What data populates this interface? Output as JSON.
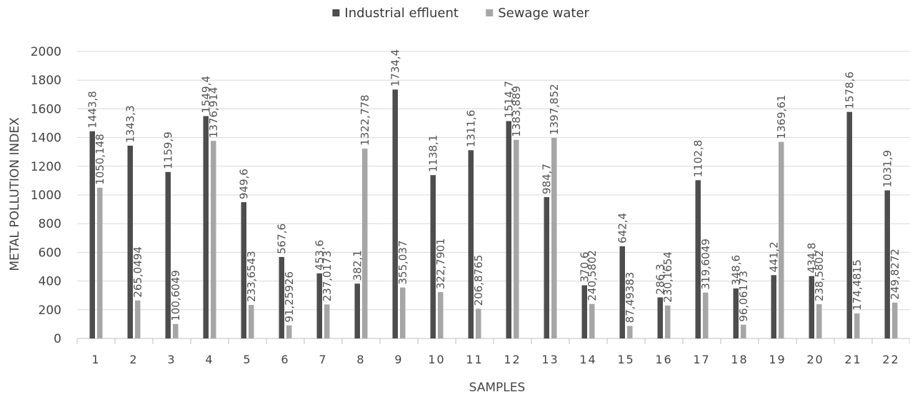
{
  "chart_data": {
    "type": "bar",
    "title": "",
    "xlabel": "SAMPLES",
    "ylabel": "METAL POLLUTION INDEX",
    "ylim": [
      0,
      2000
    ],
    "yticks": [
      0,
      200,
      400,
      600,
      800,
      1000,
      1200,
      1400,
      1600,
      1800,
      2000
    ],
    "grid": true,
    "legend_position": "top-center",
    "categories": [
      "1",
      "2",
      "3",
      "4",
      "5",
      "6",
      "7",
      "8",
      "9",
      "10",
      "11",
      "12",
      "13",
      "14",
      "15",
      "16",
      "17",
      "18",
      "19",
      "20",
      "21",
      "22"
    ],
    "series": [
      {
        "name": "Industrial effluent",
        "color": "#4d4d4d",
        "values": [
          1443.8,
          1343.3,
          1159.9,
          1549.4,
          949.6,
          567.6,
          453.6,
          382.1,
          1734.4,
          1138.1,
          1311.6,
          1514.7,
          984.7,
          370.6,
          642.4,
          286.3,
          1102.8,
          348.6,
          441.2,
          434.8,
          1578.6,
          1031.9
        ],
        "labels": [
          "1443,8",
          "1343,3",
          "1159,9",
          "1549,4",
          "949,6",
          "567,6",
          "453,6",
          "382,1",
          "1734,4",
          "1138,1",
          "1311,6",
          "1514,7",
          "984,7",
          "370,6",
          "642,4",
          "286,3",
          "1102,8",
          "348,6",
          "441,2",
          "434,8",
          "1578,6",
          "1031,9"
        ]
      },
      {
        "name": "Sewage water",
        "color": "#a6a6a6",
        "values": [
          1050.148,
          265.0494,
          100.6049,
          1376.914,
          233.6543,
          91.25926,
          237.0173,
          1322.778,
          355.037,
          322.7901,
          206.8765,
          1383.889,
          1397.852,
          240.5802,
          87.49383,
          230.1654,
          319.6049,
          96.06173,
          1369.61,
          238.5802,
          174.4815,
          249.8272
        ],
        "labels": [
          "1050,148",
          "265,0494",
          "100,6049",
          "1376,914",
          "233,6543",
          "91,25926",
          "237,0173",
          "1322,778",
          "355,037",
          "322,7901",
          "206,8765",
          "1383,889",
          "1397,852",
          "240,5802",
          "87,49383",
          "230,1654",
          "319,6049",
          "96,06173",
          "1369,61",
          "238,5802",
          "174,4815",
          "249,8272"
        ]
      }
    ]
  }
}
